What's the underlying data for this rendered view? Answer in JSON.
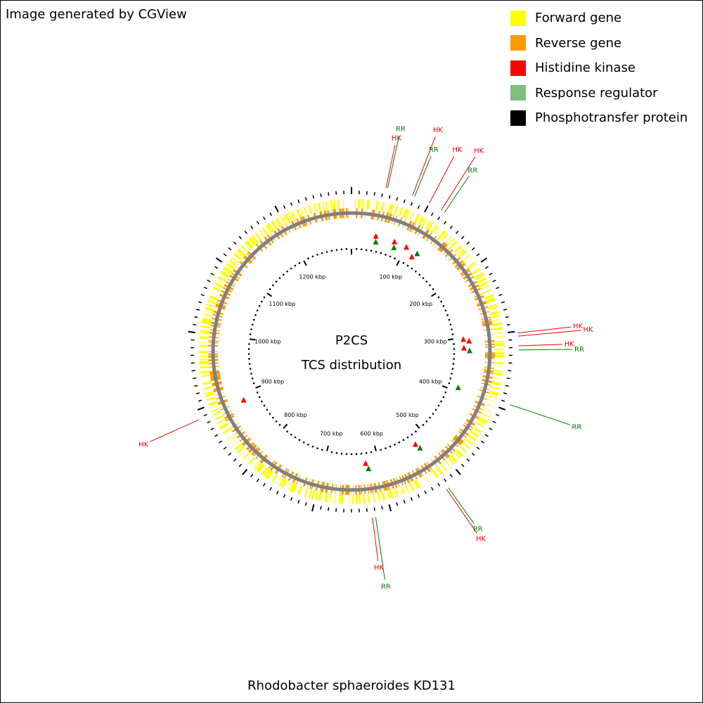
{
  "credit": "Image generated by CGView",
  "organism": "Rhodobacter sphaeroides KD131",
  "center_title": "P2CS",
  "center_subtitle": "TCS distribution",
  "legend": [
    {
      "label": "Forward gene",
      "color": "#ffff00"
    },
    {
      "label": "Reverse gene",
      "color": "#ff9900"
    },
    {
      "label": "Histidine kinase",
      "color": "#ff0000"
    },
    {
      "label": "Response regulator",
      "color": "#7fbf7f"
    },
    {
      "label": "Phosphotransfer protein",
      "color": "#000000"
    }
  ],
  "genome_length_kbp": 1300,
  "tick_labels": [
    "100 kbp",
    "200 kbp",
    "300 kbp",
    "400 kbp",
    "500 kbp",
    "600 kbp",
    "700 kbp",
    "800 kbp",
    "900 kbp",
    "1000 kbp",
    "1100 kbp",
    "1200 kbp"
  ],
  "tcs_features": [
    {
      "type": "HK",
      "pos_kbp": 43
    },
    {
      "type": "RR",
      "pos_kbp": 45
    },
    {
      "type": "HK",
      "pos_kbp": 77
    },
    {
      "type": "RR",
      "pos_kbp": 80
    },
    {
      "type": "HK",
      "pos_kbp": 100
    },
    {
      "type": "HK",
      "pos_kbp": 117
    },
    {
      "type": "RR",
      "pos_kbp": 122
    },
    {
      "type": "HK",
      "pos_kbp": 302
    },
    {
      "type": "HK",
      "pos_kbp": 306
    },
    {
      "type": "HK",
      "pos_kbp": 318
    },
    {
      "type": "RR",
      "pos_kbp": 323
    },
    {
      "type": "RR",
      "pos_kbp": 392
    },
    {
      "type": "RR",
      "pos_kbp": 522
    },
    {
      "type": "HK",
      "pos_kbp": 525
    },
    {
      "type": "RR",
      "pos_kbp": 620
    },
    {
      "type": "HK",
      "pos_kbp": 624
    },
    {
      "type": "HK",
      "pos_kbp": 888
    }
  ],
  "feature_colors": {
    "HK": "#ff0000",
    "RR": "#008000"
  }
}
